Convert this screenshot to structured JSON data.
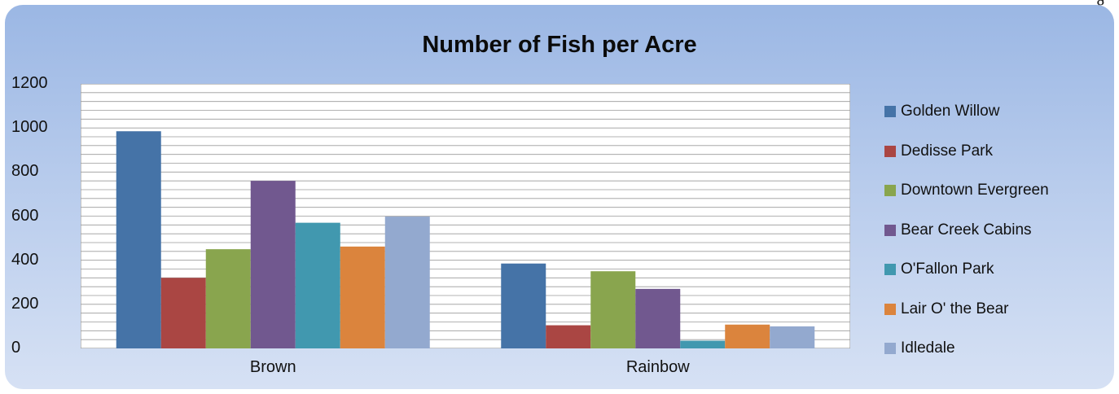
{
  "top_fragment": "g",
  "chart_data": {
    "type": "bar",
    "title": "Number of Fish per Acre",
    "categories": [
      "Brown",
      "Rainbow"
    ],
    "ylim": [
      0,
      1200
    ],
    "yticks": [
      0,
      200,
      400,
      600,
      800,
      1000,
      1200
    ],
    "grid": true,
    "legend_position": "right",
    "series": [
      {
        "name": "Golden Willow",
        "color": "#4573a7",
        "values": [
          985,
          385
        ]
      },
      {
        "name": "Dedisse Park",
        "color": "#aa4643",
        "values": [
          320,
          105
        ]
      },
      {
        "name": "Downtown Evergreen",
        "color": "#89a54e",
        "values": [
          450,
          350
        ]
      },
      {
        "name": "Bear Creek Cabins",
        "color": "#71588f",
        "values": [
          760,
          270
        ]
      },
      {
        "name": "O'Fallon Park",
        "color": "#4198af",
        "values": [
          570,
          35
        ]
      },
      {
        "name": "Lair O' the Bear",
        "color": "#db843d",
        "values": [
          462,
          108
        ]
      },
      {
        "name": "Idledale",
        "color": "#93a9cf",
        "values": [
          598,
          100
        ]
      }
    ]
  }
}
